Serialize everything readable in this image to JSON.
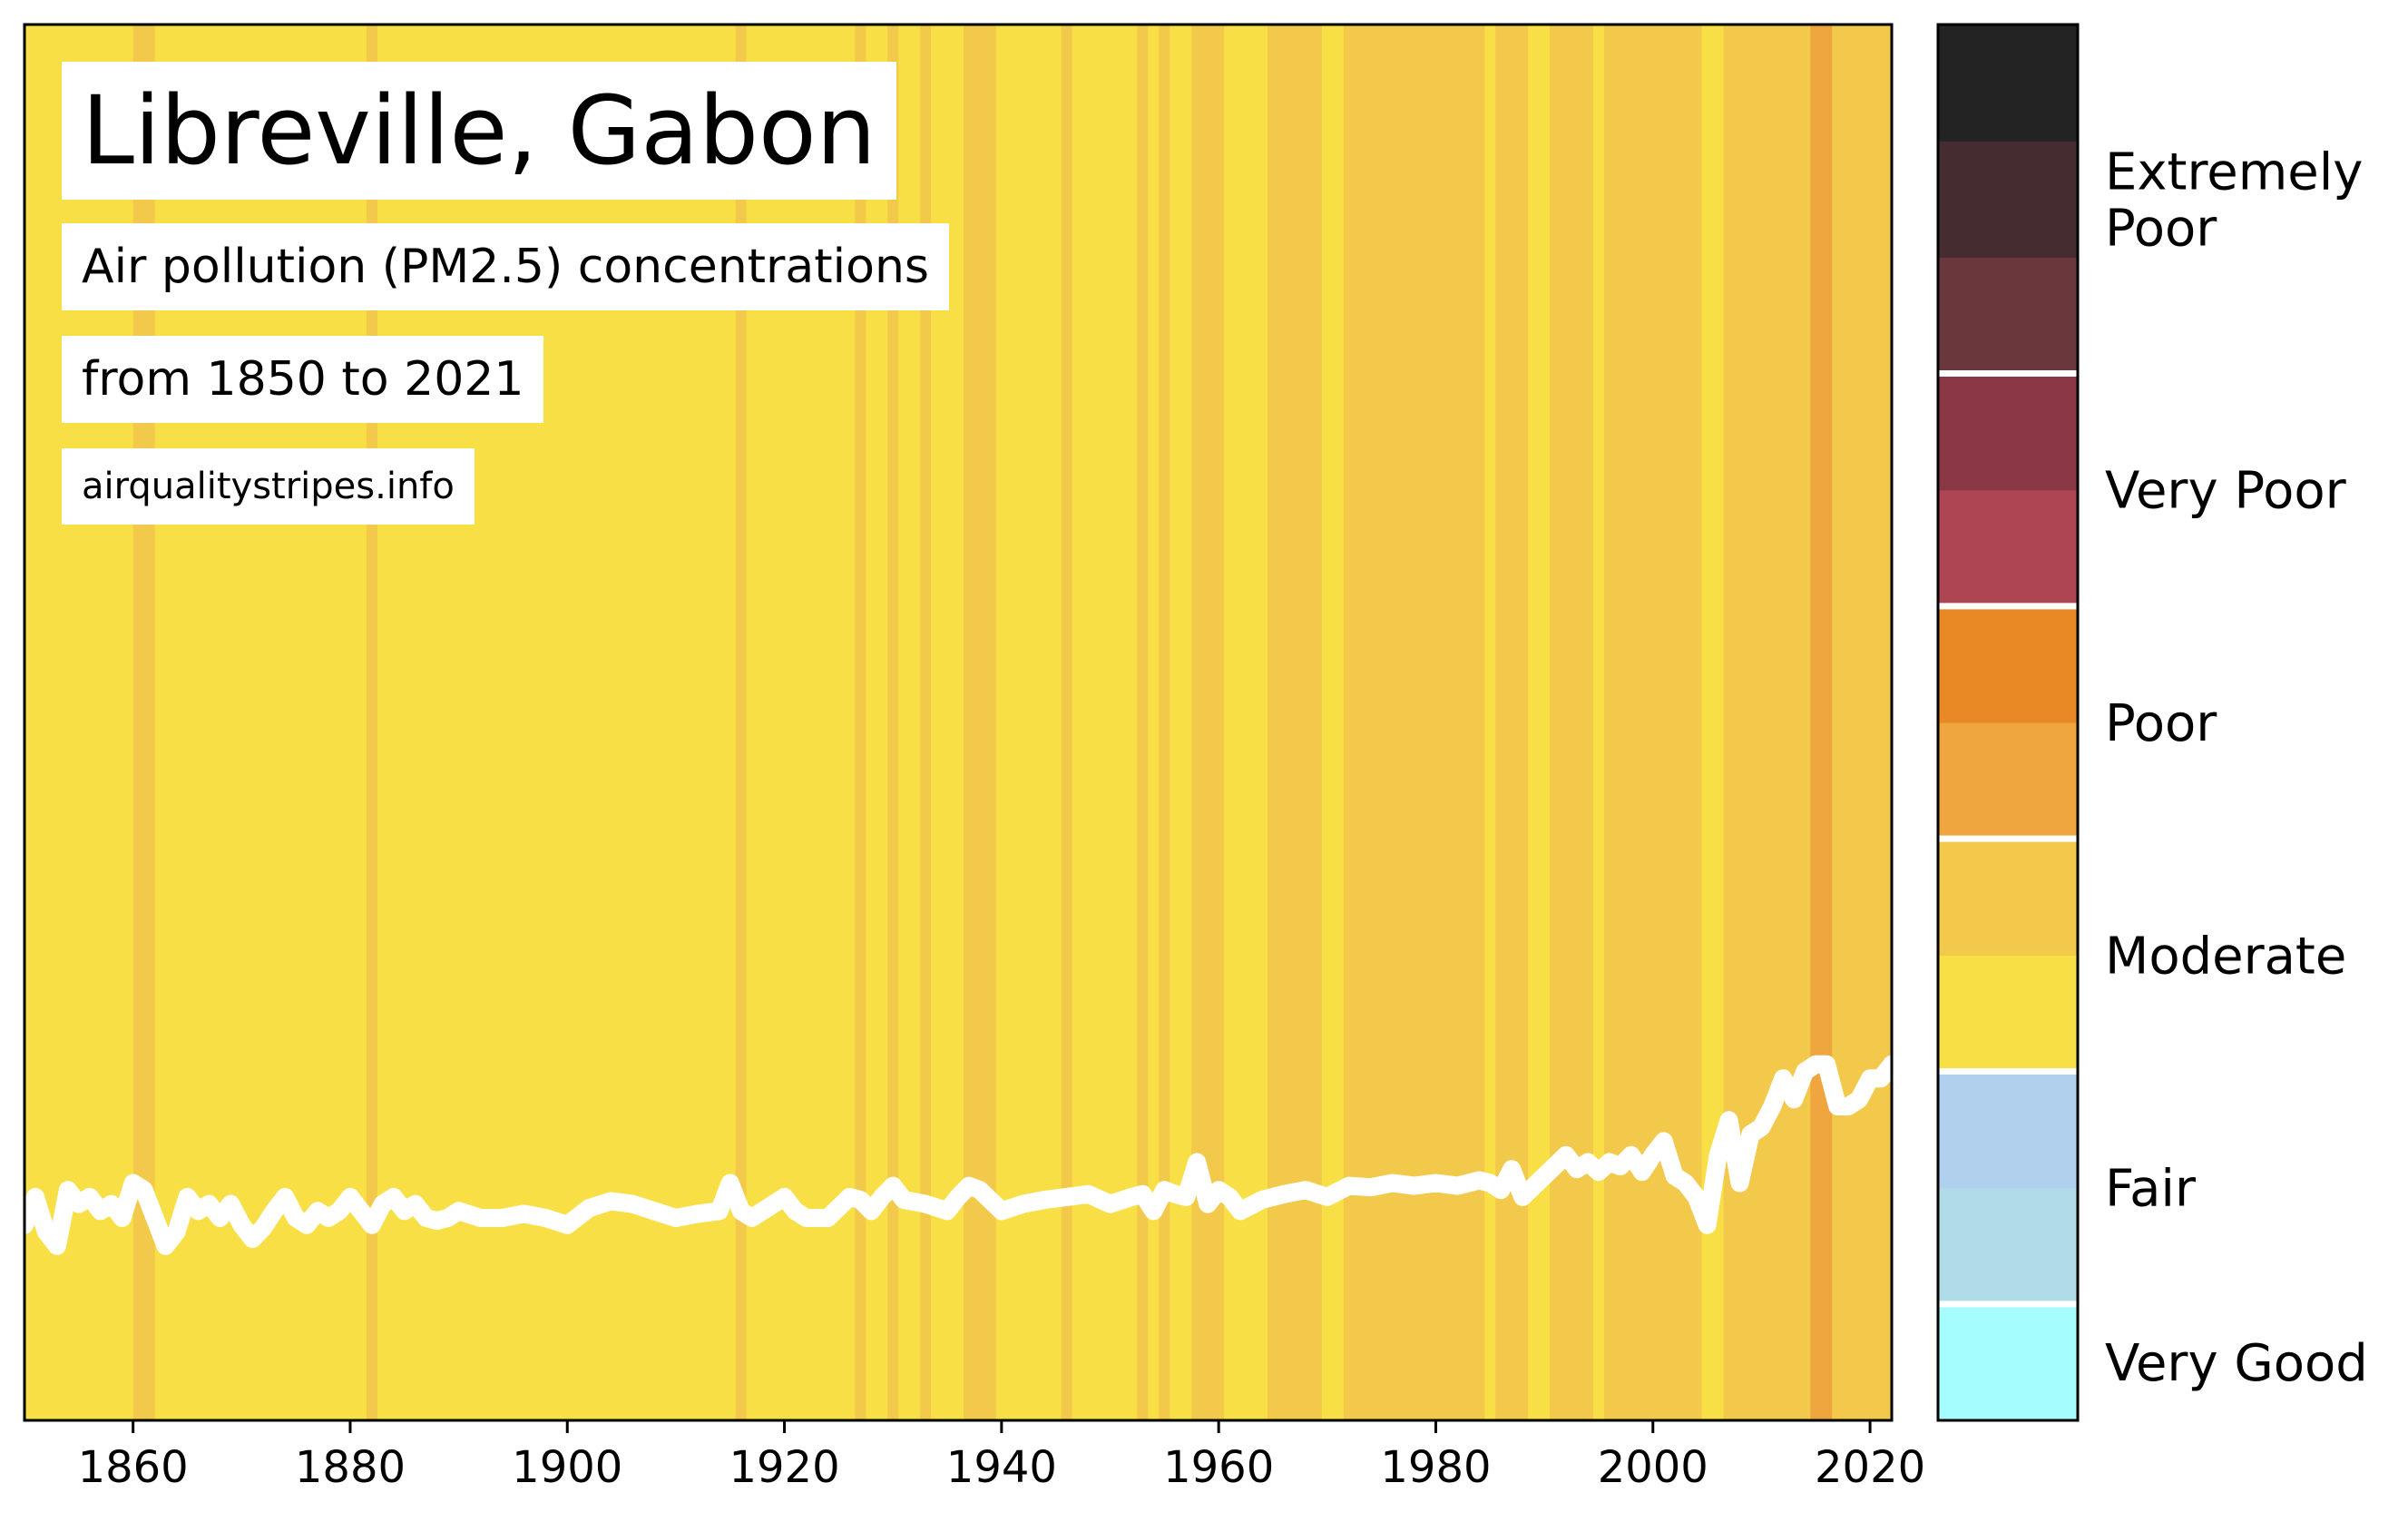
{
  "title": "Libreville, Gabon",
  "subtitle_line1": "Air pollution (PM2.5) concentrations",
  "subtitle_line2": "from 1850 to 2021",
  "source": "airqualitystripes.info",
  "colors": {
    "band_light_yellow": "#f8df46",
    "band_moderate": "#f2c94a",
    "band_poor_light": "#f0a63f",
    "line": "#ffffff"
  },
  "colorbar": {
    "segments": [
      {
        "category": "Very Good",
        "color": "#a6fdfd"
      },
      {
        "category": "Fair",
        "color": "#b0dbe8"
      },
      {
        "category": "Fair",
        "color": "#b0d0ee"
      },
      {
        "category": "Moderate",
        "color": "#f8df46"
      },
      {
        "category": "Moderate",
        "color": "#f2c94a"
      },
      {
        "category": "Poor",
        "color": "#f0a63f"
      },
      {
        "category": "Poor",
        "color": "#e88925"
      },
      {
        "category": "Very Poor",
        "color": "#ae4553"
      },
      {
        "category": "Very Poor",
        "color": "#8a3746"
      },
      {
        "category": "Extremely Poor",
        "color": "#69373c"
      },
      {
        "category": "Extremely Poor",
        "color": "#452c30"
      },
      {
        "category": "Extremely Poor",
        "color": "#232323"
      }
    ],
    "labels": [
      "Very Good",
      "Fair",
      "Moderate",
      "Poor",
      "Very Poor",
      "Extremely Poor"
    ]
  },
  "chart_data": {
    "type": "heatmap",
    "title": "Libreville, Gabon",
    "xlim": [
      1850,
      2022
    ],
    "xticks": [
      1860,
      1880,
      1900,
      1920,
      1940,
      1960,
      1980,
      2000,
      2020
    ],
    "grid": false,
    "legend": "colorbar right",
    "stripes": [
      {
        "start": 1850,
        "end": 1860,
        "category": "Moderate-low"
      },
      {
        "start": 1860,
        "end": 1862,
        "category": "Moderate-high"
      },
      {
        "start": 1862,
        "end": 1881.5,
        "category": "Moderate-low"
      },
      {
        "start": 1881.5,
        "end": 1882.5,
        "category": "Moderate-high"
      },
      {
        "start": 1882.5,
        "end": 1915.5,
        "category": "Moderate-low"
      },
      {
        "start": 1915.5,
        "end": 1916.5,
        "category": "Moderate-high"
      },
      {
        "start": 1916.5,
        "end": 1926.5,
        "category": "Moderate-low"
      },
      {
        "start": 1926.5,
        "end": 1927.5,
        "category": "Moderate-high"
      },
      {
        "start": 1927.5,
        "end": 1929.5,
        "category": "Moderate-low"
      },
      {
        "start": 1929.5,
        "end": 1930.5,
        "category": "Moderate-high"
      },
      {
        "start": 1930.5,
        "end": 1932.5,
        "category": "Moderate-low"
      },
      {
        "start": 1932.5,
        "end": 1933.5,
        "category": "Moderate-high"
      },
      {
        "start": 1933.5,
        "end": 1936.5,
        "category": "Moderate-low"
      },
      {
        "start": 1936.5,
        "end": 1939.5,
        "category": "Moderate-high"
      },
      {
        "start": 1939.5,
        "end": 1945.5,
        "category": "Moderate-low"
      },
      {
        "start": 1945.5,
        "end": 1946.5,
        "category": "Moderate-high"
      },
      {
        "start": 1946.5,
        "end": 1952.5,
        "category": "Moderate-low"
      },
      {
        "start": 1952.5,
        "end": 1953.5,
        "category": "Moderate-high"
      },
      {
        "start": 1953.5,
        "end": 1954.5,
        "category": "Moderate-low"
      },
      {
        "start": 1954.5,
        "end": 1955.5,
        "category": "Moderate-high"
      },
      {
        "start": 1955.5,
        "end": 1957.5,
        "category": "Moderate-low"
      },
      {
        "start": 1957.5,
        "end": 1960.5,
        "category": "Moderate-high"
      },
      {
        "start": 1960.5,
        "end": 1964.5,
        "category": "Moderate-low"
      },
      {
        "start": 1964.5,
        "end": 1969.5,
        "category": "Moderate-high"
      },
      {
        "start": 1969.5,
        "end": 1971.5,
        "category": "Moderate-low"
      },
      {
        "start": 1971.5,
        "end": 1984.5,
        "category": "Moderate-high"
      },
      {
        "start": 1984.5,
        "end": 1985.5,
        "category": "Moderate-low"
      },
      {
        "start": 1985.5,
        "end": 1988.5,
        "category": "Moderate-high"
      },
      {
        "start": 1988.5,
        "end": 1990.5,
        "category": "Moderate-low"
      },
      {
        "start": 1990.5,
        "end": 1994.5,
        "category": "Moderate-high"
      },
      {
        "start": 1994.5,
        "end": 1995.5,
        "category": "Moderate-low"
      },
      {
        "start": 1995.5,
        "end": 2004.5,
        "category": "Moderate-high"
      },
      {
        "start": 2004.5,
        "end": 2006.5,
        "category": "Moderate-low"
      },
      {
        "start": 2006.5,
        "end": 2014.5,
        "category": "Moderate-high"
      },
      {
        "start": 2014.5,
        "end": 2016.5,
        "category": "Poor-low"
      },
      {
        "start": 2016.5,
        "end": 2022,
        "category": "Moderate-high"
      }
    ],
    "line_series": {
      "name": "",
      "y_scale": "relative (0 = bottom of plot, 1 = top of plot)",
      "x": [
        1850,
        1851,
        1852,
        1853,
        1854,
        1855,
        1856,
        1857,
        1858,
        1859,
        1860,
        1861,
        1862,
        1863,
        1864,
        1865,
        1866,
        1867,
        1868,
        1869,
        1870,
        1871,
        1872,
        1873,
        1874,
        1875,
        1876,
        1877,
        1878,
        1879,
        1880,
        1881,
        1882,
        1883,
        1884,
        1885,
        1886,
        1887,
        1888,
        1889,
        1890,
        1892,
        1894,
        1896,
        1898,
        1900,
        1902,
        1904,
        1906,
        1908,
        1910,
        1912,
        1914,
        1915,
        1916,
        1917,
        1918,
        1920,
        1921,
        1922,
        1924,
        1926,
        1927,
        1928,
        1929,
        1930,
        1931,
        1933,
        1935,
        1936,
        1937,
        1938,
        1940,
        1942,
        1944,
        1946,
        1948,
        1950,
        1952,
        1953,
        1954,
        1955,
        1956,
        1957,
        1958,
        1959,
        1960,
        1961,
        1962,
        1964,
        1966,
        1968,
        1970,
        1972,
        1974,
        1976,
        1978,
        1980,
        1982,
        1984,
        1985,
        1986,
        1987,
        1988,
        1990,
        1992,
        1993,
        1994,
        1995,
        1996,
        1997,
        1998,
        1999,
        2000,
        2001,
        2002,
        2003,
        2004,
        2005,
        2006,
        2007,
        2008,
        2009,
        2010,
        2011,
        2012,
        2013,
        2014,
        2015,
        2016,
        2017,
        2018,
        2019,
        2020,
        2021,
        2022
      ],
      "y": [
        0.14,
        0.16,
        0.135,
        0.125,
        0.165,
        0.155,
        0.16,
        0.15,
        0.155,
        0.145,
        0.17,
        0.165,
        0.145,
        0.125,
        0.135,
        0.16,
        0.15,
        0.155,
        0.145,
        0.155,
        0.14,
        0.13,
        0.138,
        0.15,
        0.16,
        0.145,
        0.14,
        0.15,
        0.145,
        0.15,
        0.16,
        0.15,
        0.14,
        0.155,
        0.16,
        0.15,
        0.155,
        0.145,
        0.143,
        0.145,
        0.15,
        0.145,
        0.145,
        0.148,
        0.145,
        0.14,
        0.152,
        0.157,
        0.155,
        0.15,
        0.145,
        0.148,
        0.15,
        0.17,
        0.15,
        0.145,
        0.15,
        0.16,
        0.15,
        0.145,
        0.145,
        0.16,
        0.158,
        0.15,
        0.16,
        0.168,
        0.158,
        0.155,
        0.15,
        0.16,
        0.168,
        0.165,
        0.15,
        0.155,
        0.158,
        0.16,
        0.162,
        0.155,
        0.16,
        0.162,
        0.15,
        0.165,
        0.162,
        0.16,
        0.185,
        0.155,
        0.165,
        0.16,
        0.15,
        0.158,
        0.162,
        0.165,
        0.16,
        0.168,
        0.167,
        0.17,
        0.168,
        0.17,
        0.168,
        0.172,
        0.17,
        0.165,
        0.18,
        0.16,
        0.175,
        0.19,
        0.18,
        0.185,
        0.178,
        0.185,
        0.182,
        0.19,
        0.178,
        0.19,
        0.2,
        0.175,
        0.17,
        0.16,
        0.14,
        0.19,
        0.215,
        0.17,
        0.205,
        0.21,
        0.225,
        0.245,
        0.23,
        0.25,
        0.255,
        0.255,
        0.225,
        0.225,
        0.23,
        0.245,
        0.245,
        0.255
      ]
    }
  }
}
